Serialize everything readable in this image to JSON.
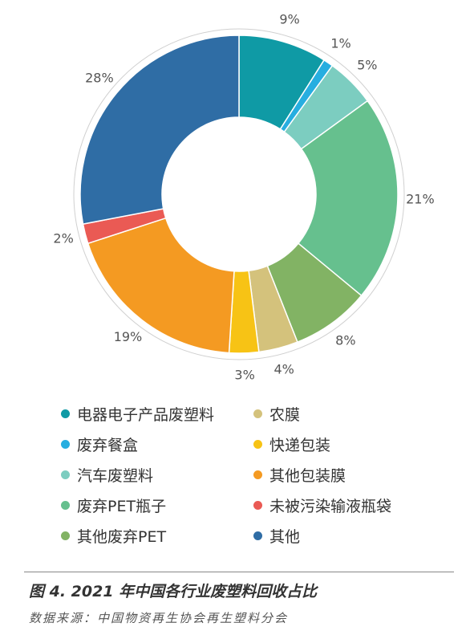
{
  "chart_data": {
    "type": "pie",
    "donut": true,
    "unit": "%",
    "categories": [
      "电器电子产品废塑料",
      "废弃餐盒",
      "汽车废塑料",
      "废弃PET瓶子",
      "其他废弃PET",
      "农膜",
      "快递包装",
      "其他包装膜",
      "未被污染输液瓶袋",
      "其他"
    ],
    "values": [
      9,
      1,
      5,
      21,
      8,
      4,
      3,
      19,
      2,
      28
    ],
    "labels": [
      "9%",
      "1%",
      "5%",
      "21%",
      "8%",
      "4%",
      "3%",
      "19%",
      "2%",
      "28%"
    ],
    "colors": [
      "#0f9aa5",
      "#27aee0",
      "#7ccdc0",
      "#66c08e",
      "#82b364",
      "#d4c27c",
      "#f7c315",
      "#f49a22",
      "#ea5a54",
      "#2f6da5"
    ],
    "legend_placement": "bottom"
  },
  "caption": "图 4. 2021 年中国各行业废塑料回收占比",
  "source": "数据来源：中国物资再生协会再生塑料分会"
}
